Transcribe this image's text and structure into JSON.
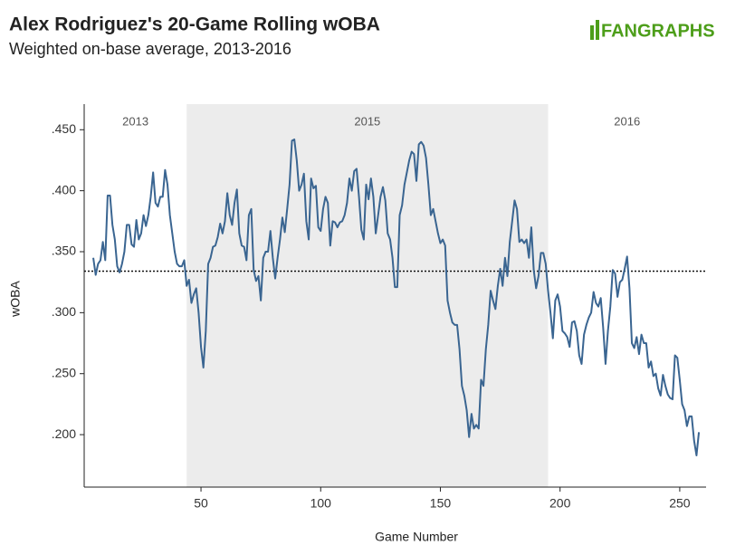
{
  "chart_data": {
    "type": "line",
    "title": "Alex Rodriguez's 20-Game Rolling wOBA",
    "subtitle": "Weighted on-base average, 2013-2016",
    "logo": "FANGRAPHS",
    "x_label": "Game Number",
    "y_label": "wOBA",
    "color": "#3a6591",
    "reference_line": 0.334,
    "regions": [
      {
        "label": "2013"
      },
      {
        "label": "2015",
        "start": 44,
        "end": 195,
        "shaded": true
      },
      {
        "label": "2016"
      }
    ],
    "xlim": [
      1.2,
      261
    ],
    "xticks": [
      50,
      100,
      150,
      200,
      250
    ],
    "ylim": [
      0.157,
      0.471
    ],
    "yticks": [
      {
        "value": 0.2,
        "label": ".200"
      },
      {
        "value": 0.25,
        "label": ".250"
      },
      {
        "value": 0.3,
        "label": ".300"
      },
      {
        "value": 0.35,
        "label": ".350"
      },
      {
        "value": 0.4,
        "label": ".400"
      },
      {
        "value": 0.45,
        "label": ".450"
      }
    ],
    "x": [
      5,
      6,
      7,
      8,
      9,
      10,
      11,
      12,
      13,
      14,
      15,
      16,
      17,
      18,
      19,
      20,
      21,
      22,
      23,
      24,
      25,
      26,
      27,
      28,
      29,
      30,
      31,
      32,
      33,
      34,
      35,
      36,
      37,
      38,
      39,
      40,
      41,
      42,
      43,
      44,
      45,
      46,
      47,
      48,
      49,
      50,
      51,
      52,
      53,
      54,
      55,
      56,
      57,
      58,
      59,
      60,
      61,
      62,
      63,
      64,
      65,
      66,
      67,
      68,
      69,
      70,
      71,
      72,
      73,
      74,
      75,
      76,
      77,
      78,
      79,
      80,
      81,
      82,
      83,
      84,
      85,
      86,
      87,
      88,
      89,
      90,
      91,
      92,
      93,
      94,
      95,
      96,
      97,
      98,
      99,
      100,
      101,
      102,
      103,
      104,
      105,
      106,
      107,
      108,
      109,
      110,
      111,
      112,
      113,
      114,
      115,
      116,
      117,
      118,
      119,
      120,
      121,
      122,
      123,
      124,
      125,
      126,
      127,
      128,
      129,
      130,
      131,
      132,
      133,
      134,
      135,
      136,
      137,
      138,
      139,
      140,
      141,
      142,
      143,
      144,
      145,
      146,
      147,
      148,
      149,
      150,
      151,
      152,
      153,
      154,
      155,
      156,
      157,
      158,
      159,
      160,
      161,
      162,
      163,
      164,
      165,
      166,
      167,
      168,
      169,
      170,
      171,
      172,
      173,
      174,
      175,
      176,
      177,
      178,
      179,
      180,
      181,
      182,
      183,
      184,
      185,
      186,
      187,
      188,
      189,
      190,
      191,
      192,
      193,
      194,
      195,
      196,
      197,
      198,
      199,
      200,
      201,
      202,
      203,
      204,
      205,
      206,
      207,
      208,
      209,
      210,
      211,
      212,
      213,
      214,
      215,
      216,
      217,
      218,
      219,
      220,
      221,
      222,
      223,
      224,
      225,
      226,
      227,
      228,
      229,
      230,
      231,
      232,
      233,
      234,
      235,
      236,
      237,
      238,
      239,
      240,
      241,
      242,
      243,
      244,
      245,
      246,
      247,
      248,
      249,
      250,
      251,
      252,
      253,
      254,
      255,
      256,
      257,
      258
    ],
    "values": [
      0.345,
      0.331,
      0.34,
      0.343,
      0.358,
      0.343,
      0.396,
      0.396,
      0.372,
      0.36,
      0.338,
      0.333,
      0.34,
      0.35,
      0.372,
      0.372,
      0.356,
      0.354,
      0.376,
      0.36,
      0.365,
      0.38,
      0.371,
      0.38,
      0.395,
      0.415,
      0.39,
      0.387,
      0.395,
      0.395,
      0.417,
      0.405,
      0.38,
      0.365,
      0.35,
      0.34,
      0.338,
      0.338,
      0.343,
      0.322,
      0.327,
      0.308,
      0.315,
      0.32,
      0.3,
      0.272,
      0.255,
      0.285,
      0.34,
      0.345,
      0.354,
      0.355,
      0.362,
      0.373,
      0.365,
      0.375,
      0.398,
      0.38,
      0.372,
      0.39,
      0.401,
      0.365,
      0.355,
      0.354,
      0.343,
      0.38,
      0.385,
      0.335,
      0.326,
      0.33,
      0.31,
      0.345,
      0.35,
      0.35,
      0.367,
      0.345,
      0.328,
      0.345,
      0.36,
      0.378,
      0.366,
      0.385,
      0.405,
      0.441,
      0.442,
      0.425,
      0.4,
      0.405,
      0.414,
      0.375,
      0.36,
      0.41,
      0.402,
      0.404,
      0.37,
      0.367,
      0.385,
      0.395,
      0.39,
      0.355,
      0.375,
      0.374,
      0.37,
      0.374,
      0.375,
      0.38,
      0.39,
      0.41,
      0.4,
      0.416,
      0.418,
      0.395,
      0.368,
      0.36,
      0.405,
      0.393,
      0.41,
      0.395,
      0.365,
      0.38,
      0.395,
      0.403,
      0.392,
      0.365,
      0.36,
      0.345,
      0.321,
      0.321,
      0.38,
      0.388,
      0.405,
      0.415,
      0.425,
      0.432,
      0.43,
      0.408,
      0.438,
      0.44,
      0.437,
      0.427,
      0.405,
      0.38,
      0.385,
      0.375,
      0.365,
      0.357,
      0.36,
      0.355,
      0.31,
      0.3,
      0.292,
      0.29,
      0.29,
      0.27,
      0.24,
      0.232,
      0.22,
      0.198,
      0.217,
      0.205,
      0.208,
      0.205,
      0.245,
      0.24,
      0.27,
      0.29,
      0.318,
      0.31,
      0.303,
      0.322,
      0.336,
      0.322,
      0.345,
      0.33,
      0.358,
      0.375,
      0.392,
      0.385,
      0.358,
      0.36,
      0.357,
      0.36,
      0.345,
      0.37,
      0.335,
      0.32,
      0.33,
      0.349,
      0.349,
      0.34,
      0.318,
      0.3,
      0.279,
      0.31,
      0.315,
      0.305,
      0.285,
      0.283,
      0.28,
      0.272,
      0.292,
      0.293,
      0.285,
      0.265,
      0.258,
      0.282,
      0.29,
      0.296,
      0.3,
      0.317,
      0.308,
      0.305,
      0.312,
      0.288,
      0.258,
      0.285,
      0.305,
      0.335,
      0.332,
      0.313,
      0.325,
      0.327,
      0.336,
      0.346,
      0.32,
      0.275,
      0.271,
      0.28,
      0.266,
      0.282,
      0.275,
      0.275,
      0.255,
      0.26,
      0.248,
      0.25,
      0.238,
      0.232,
      0.249,
      0.24,
      0.233,
      0.23,
      0.229,
      0.265,
      0.263,
      0.245,
      0.225,
      0.22,
      0.207,
      0.215,
      0.215,
      0.195,
      0.183,
      0.202
    ]
  }
}
